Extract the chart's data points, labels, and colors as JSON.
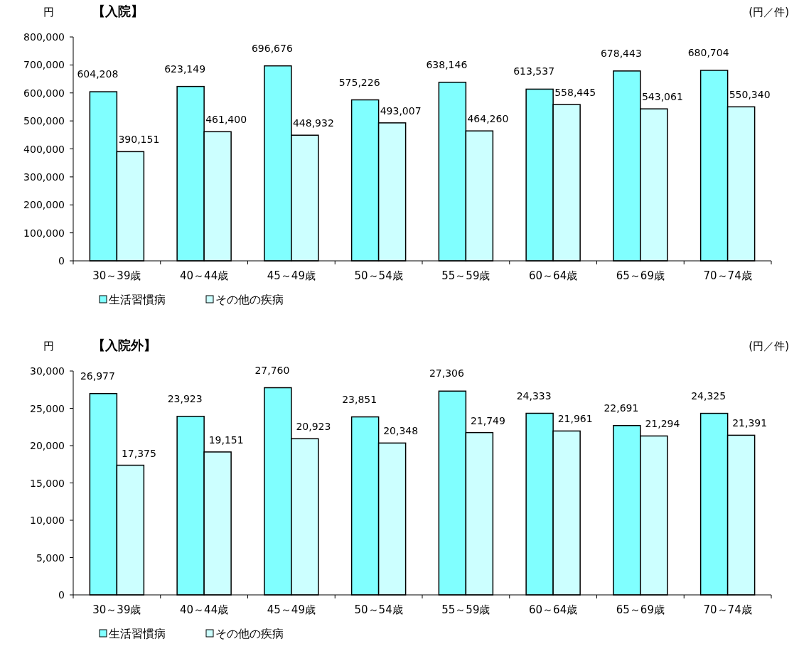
{
  "chart_data": [
    {
      "type": "bar",
      "title": "【入院】",
      "ylabel": "円",
      "annotations": [
        "(円／件)"
      ],
      "categories": [
        "30～39歳",
        "40～44歳",
        "45～49歳",
        "50～54歳",
        "55～59歳",
        "60～64歳",
        "65～69歳",
        "70～74歳"
      ],
      "series": [
        {
          "name": "生活習慣病",
          "color": "#80ffff",
          "values": [
            604208,
            623149,
            696676,
            575226,
            638146,
            613537,
            678443,
            680704
          ],
          "value_labels": [
            "604,208",
            "623,149",
            "696,676",
            "575,226",
            "638,146",
            "613,537",
            "678,443",
            "680,704"
          ]
        },
        {
          "name": "その他の疾病",
          "color": "#ccffff",
          "values": [
            390151,
            461400,
            448932,
            493007,
            464260,
            558445,
            543061,
            550340
          ],
          "value_labels": [
            "390,151",
            "461,400",
            "448,932",
            "493,007",
            "464,260",
            "558,445",
            "543,061",
            "550,340"
          ]
        }
      ],
      "ylim": [
        0,
        800000
      ],
      "yticks": [
        0,
        {
          "value": 100000,
          "label": "100,000"
        },
        {
          "value": 200000,
          "label": "200,000"
        },
        {
          "value": 300000,
          "label": "300,000"
        },
        {
          "value": 400000,
          "label": "400,000"
        },
        {
          "value": 500000,
          "label": "500,000"
        },
        {
          "value": 600000,
          "label": "600,000"
        },
        {
          "value": 700000,
          "label": "700,000"
        },
        {
          "value": 800000,
          "label": "800,000"
        }
      ],
      "grid": false,
      "legend": "bottom left"
    },
    {
      "type": "bar",
      "title": "【入院外】",
      "ylabel": "円",
      "annotations": [
        "(円／件)"
      ],
      "categories": [
        "30～39歳",
        "40～44歳",
        "45～49歳",
        "50～54歳",
        "55～59歳",
        "60～64歳",
        "65～69歳",
        "70～74歳"
      ],
      "series": [
        {
          "name": "生活習慣病",
          "color": "#80ffff",
          "values": [
            26977,
            23923,
            27760,
            23851,
            27306,
            24333,
            22691,
            24325
          ],
          "value_labels": [
            "26,977",
            "23,923",
            "27,760",
            "23,851",
            "27,306",
            "24,333",
            "22,691",
            "24,325"
          ]
        },
        {
          "name": "その他の疾病",
          "color": "#ccffff",
          "values": [
            17375,
            19151,
            20923,
            20348,
            21749,
            21961,
            21294,
            21391
          ],
          "value_labels": [
            "17,375",
            "19,151",
            "20,923",
            "20,348",
            "21,749",
            "21,961",
            "21,294",
            "21,391"
          ]
        }
      ],
      "ylim": [
        0,
        30000
      ],
      "yticks": [
        0,
        {
          "value": 5000,
          "label": "5,000"
        },
        {
          "value": 10000,
          "label": "10,000"
        },
        {
          "value": 15000,
          "label": "15,000"
        },
        {
          "value": 20000,
          "label": "20,000"
        },
        {
          "value": 25000,
          "label": "25,000"
        },
        {
          "value": 30000,
          "label": "30,000"
        }
      ],
      "grid": false,
      "legend": "bottom left"
    }
  ]
}
